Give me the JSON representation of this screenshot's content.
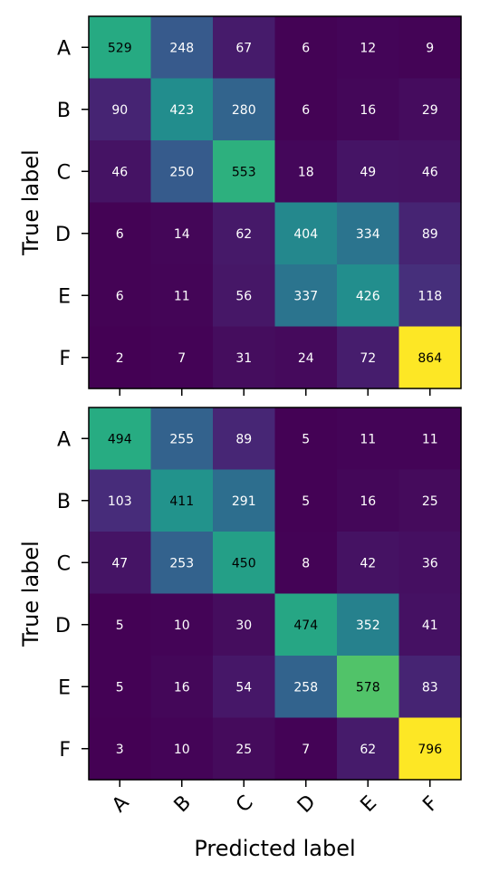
{
  "chart_data": [
    {
      "type": "heatmap",
      "title": "",
      "xlabel": "",
      "ylabel": "True label",
      "x_categories": [
        "A",
        "B",
        "C",
        "D",
        "E",
        "F"
      ],
      "y_categories": [
        "A",
        "B",
        "C",
        "D",
        "E",
        "F"
      ],
      "x_tick_labels_shown": false,
      "colormap": "viridis",
      "vmin": 2,
      "vmax": 864,
      "values": [
        [
          529,
          248,
          67,
          6,
          12,
          9
        ],
        [
          90,
          423,
          280,
          6,
          16,
          29
        ],
        [
          46,
          250,
          553,
          18,
          49,
          46
        ],
        [
          6,
          14,
          62,
          404,
          334,
          89
        ],
        [
          6,
          11,
          56,
          337,
          426,
          118
        ],
        [
          2,
          7,
          31,
          24,
          72,
          864
        ]
      ]
    },
    {
      "type": "heatmap",
      "title": "",
      "xlabel": "Predicted label",
      "ylabel": "True label",
      "x_categories": [
        "A",
        "B",
        "C",
        "D",
        "E",
        "F"
      ],
      "y_categories": [
        "A",
        "B",
        "C",
        "D",
        "E",
        "F"
      ],
      "x_tick_labels_shown": true,
      "colormap": "viridis",
      "vmin": 3,
      "vmax": 796,
      "values": [
        [
          494,
          255,
          89,
          5,
          11,
          11
        ],
        [
          103,
          411,
          291,
          5,
          16,
          25
        ],
        [
          47,
          253,
          450,
          8,
          42,
          36
        ],
        [
          5,
          10,
          30,
          474,
          352,
          41
        ],
        [
          5,
          16,
          54,
          258,
          578,
          83
        ],
        [
          3,
          10,
          25,
          7,
          62,
          796
        ]
      ]
    }
  ]
}
